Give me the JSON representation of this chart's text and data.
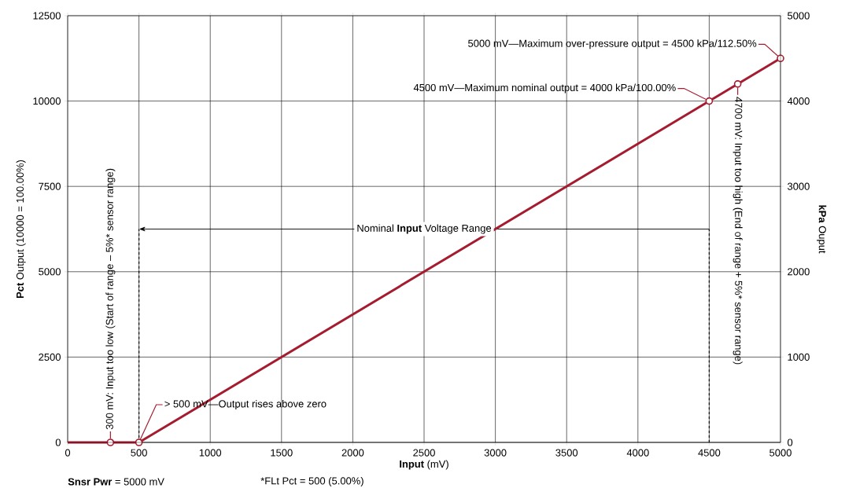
{
  "chart_data": {
    "type": "line",
    "xlabel": "**Input** (mV)",
    "ylabel": "**Pct** Output (10000 = 100.00%)",
    "y2label": "**kPa** Ouput",
    "xlim": [
      0,
      5000
    ],
    "xticks": [
      0,
      500,
      1000,
      1500,
      2000,
      2500,
      3000,
      3500,
      4000,
      4500,
      5000
    ],
    "ylim": [
      0,
      12500
    ],
    "yticks": [
      0,
      2500,
      5000,
      7500,
      10000,
      12500
    ],
    "y2lim": [
      0,
      5000
    ],
    "y2ticks": [
      0,
      1000,
      2000,
      3000,
      4000,
      5000
    ],
    "grid": true,
    "series": [
      {
        "color": "#a51c30",
        "marker": "none",
        "x": [
          0,
          500,
          5000
        ],
        "values": [
          0,
          0,
          11250
        ]
      },
      {
        "type": "scatter",
        "color": "#a51c30",
        "marker": "circle",
        "x": [
          300,
          500,
          4500,
          4700,
          5000
        ],
        "values": [
          0,
          0,
          10000,
          10500,
          11250
        ]
      }
    ],
    "ref_lines": [
      {
        "axis": "x",
        "value": 500,
        "color": "#000000",
        "line_style": "dashed"
      },
      {
        "axis": "x",
        "value": 4500,
        "color": "#000000",
        "line_style": "dashed"
      }
    ],
    "annotations": [
      {
        "text": "5000 mV—Maximum over-pressure output = 4500 kPa/112.50%",
        "x": 5000,
        "y": 11250
      },
      {
        "text": "4500 mV—Maximum nominal output = 4000 kPa/100.00%",
        "x": 4500,
        "y": 10000
      },
      {
        "text": "4700 mV: Input too high (End of range + 5%* sensor range)",
        "x": 4700,
        "y": 10500
      },
      {
        "text": "300 mV: Input too low (Start of range – 5%* sensor range)",
        "x": 300,
        "y": 0
      },
      {
        "text": "> 500 mV—Output rises above zero",
        "x": 500,
        "y": 0
      },
      "Nominal **Input** Voltage Range",
      "**Snsr Pwr** = 5000 mV",
      "*FLt Pct = 500 (5.00%)"
    ]
  }
}
